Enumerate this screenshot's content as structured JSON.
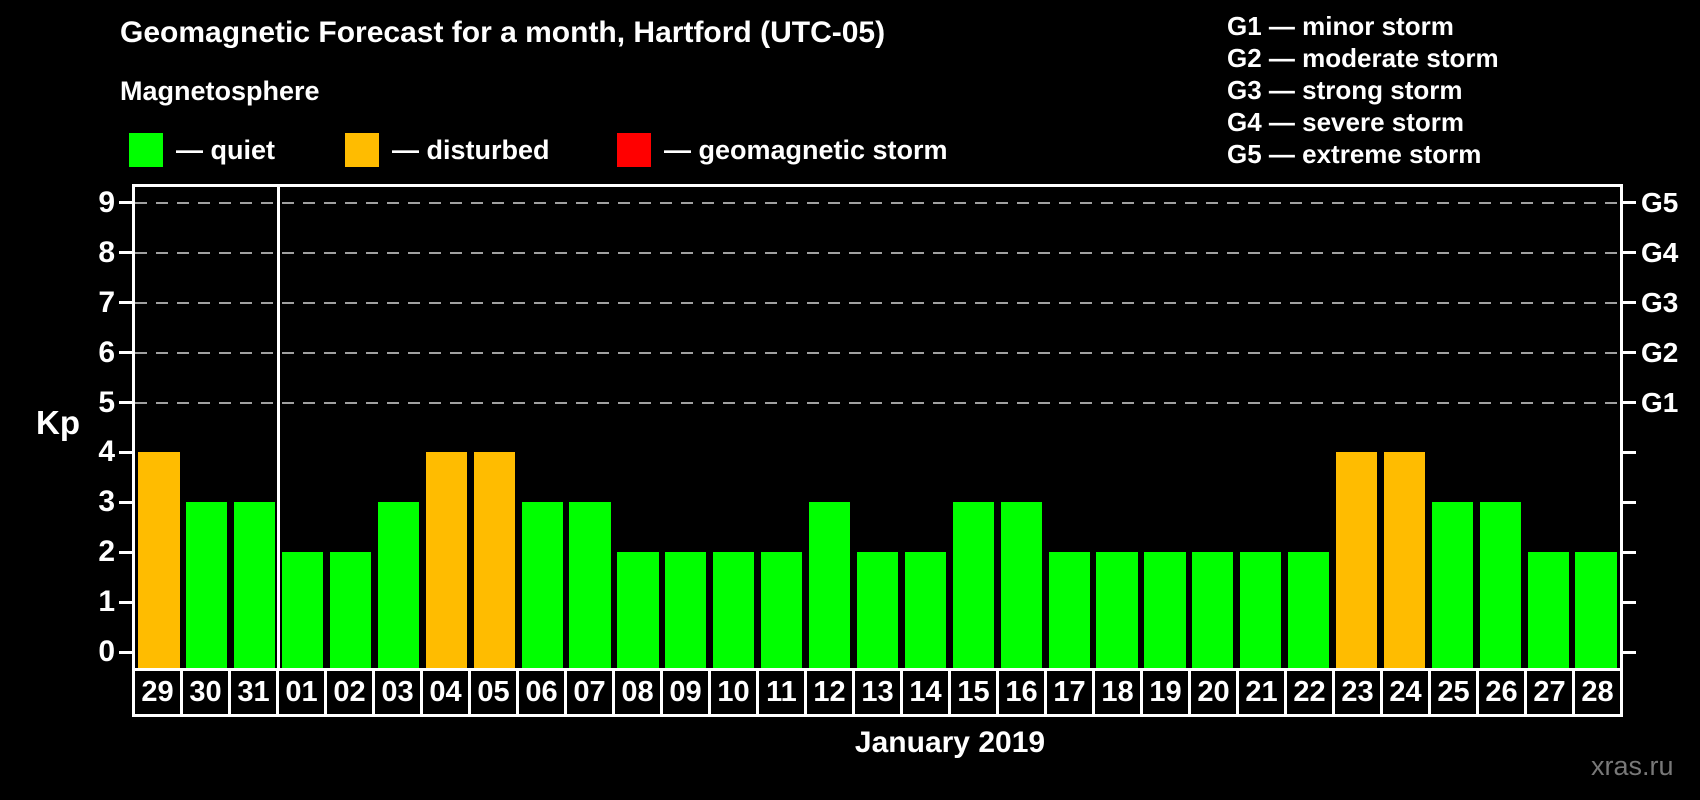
{
  "header": {
    "title": "Geomagnetic Forecast for a month, Hartford (UTC-05)",
    "subtitle": "Magnetosphere"
  },
  "legend": [
    {
      "state": "quiet",
      "text": "— quiet"
    },
    {
      "state": "disturbed",
      "text": "— disturbed"
    },
    {
      "state": "storm",
      "text": "— geomagnetic storm"
    }
  ],
  "g_legend": [
    "G1 — minor storm",
    "G2 — moderate storm",
    "G3 — strong storm",
    "G4 — severe storm",
    "G5 — extreme storm"
  ],
  "colors": {
    "quiet": "#00ff00",
    "disturbed": "#ffbc00",
    "storm": "#ff0000",
    "background": "#000000",
    "axis": "#ffffff",
    "grid": "#a0a0a0",
    "text": "#ffffff",
    "watermark": "#787878"
  },
  "watermark": "xras.ru",
  "chart_data": {
    "type": "bar",
    "title": "Geomagnetic Forecast for a month, Hartford (UTC-05)",
    "xlabel": "January 2019",
    "ylabel": "Kp",
    "ylim": [
      0,
      9
    ],
    "yticks": [
      0,
      1,
      2,
      3,
      4,
      5,
      6,
      7,
      8,
      9
    ],
    "grid": true,
    "gridlines_at": [
      5,
      6,
      7,
      8,
      9
    ],
    "legend_position": "top-left",
    "right_axis_labels": [
      {
        "value": 5,
        "label": "G1"
      },
      {
        "value": 6,
        "label": "G2"
      },
      {
        "value": 7,
        "label": "G3"
      },
      {
        "value": 8,
        "label": "G4"
      },
      {
        "value": 9,
        "label": "G5"
      }
    ],
    "month_separator_after_index": 2,
    "categories": [
      "29",
      "30",
      "31",
      "01",
      "02",
      "03",
      "04",
      "05",
      "06",
      "07",
      "08",
      "09",
      "10",
      "11",
      "12",
      "13",
      "14",
      "15",
      "16",
      "17",
      "18",
      "19",
      "20",
      "21",
      "22",
      "23",
      "24",
      "25",
      "26",
      "27",
      "28"
    ],
    "values": [
      4,
      3,
      3,
      2,
      2,
      3,
      4,
      4,
      3,
      3,
      2,
      2,
      2,
      2,
      3,
      2,
      2,
      3,
      3,
      2,
      2,
      2,
      2,
      2,
      2,
      4,
      4,
      3,
      3,
      2,
      2
    ],
    "states": [
      "disturbed",
      "quiet",
      "quiet",
      "quiet",
      "quiet",
      "quiet",
      "disturbed",
      "disturbed",
      "quiet",
      "quiet",
      "quiet",
      "quiet",
      "quiet",
      "quiet",
      "quiet",
      "quiet",
      "quiet",
      "quiet",
      "quiet",
      "quiet",
      "quiet",
      "quiet",
      "quiet",
      "quiet",
      "quiet",
      "disturbed",
      "disturbed",
      "quiet",
      "quiet",
      "quiet",
      "quiet"
    ]
  }
}
